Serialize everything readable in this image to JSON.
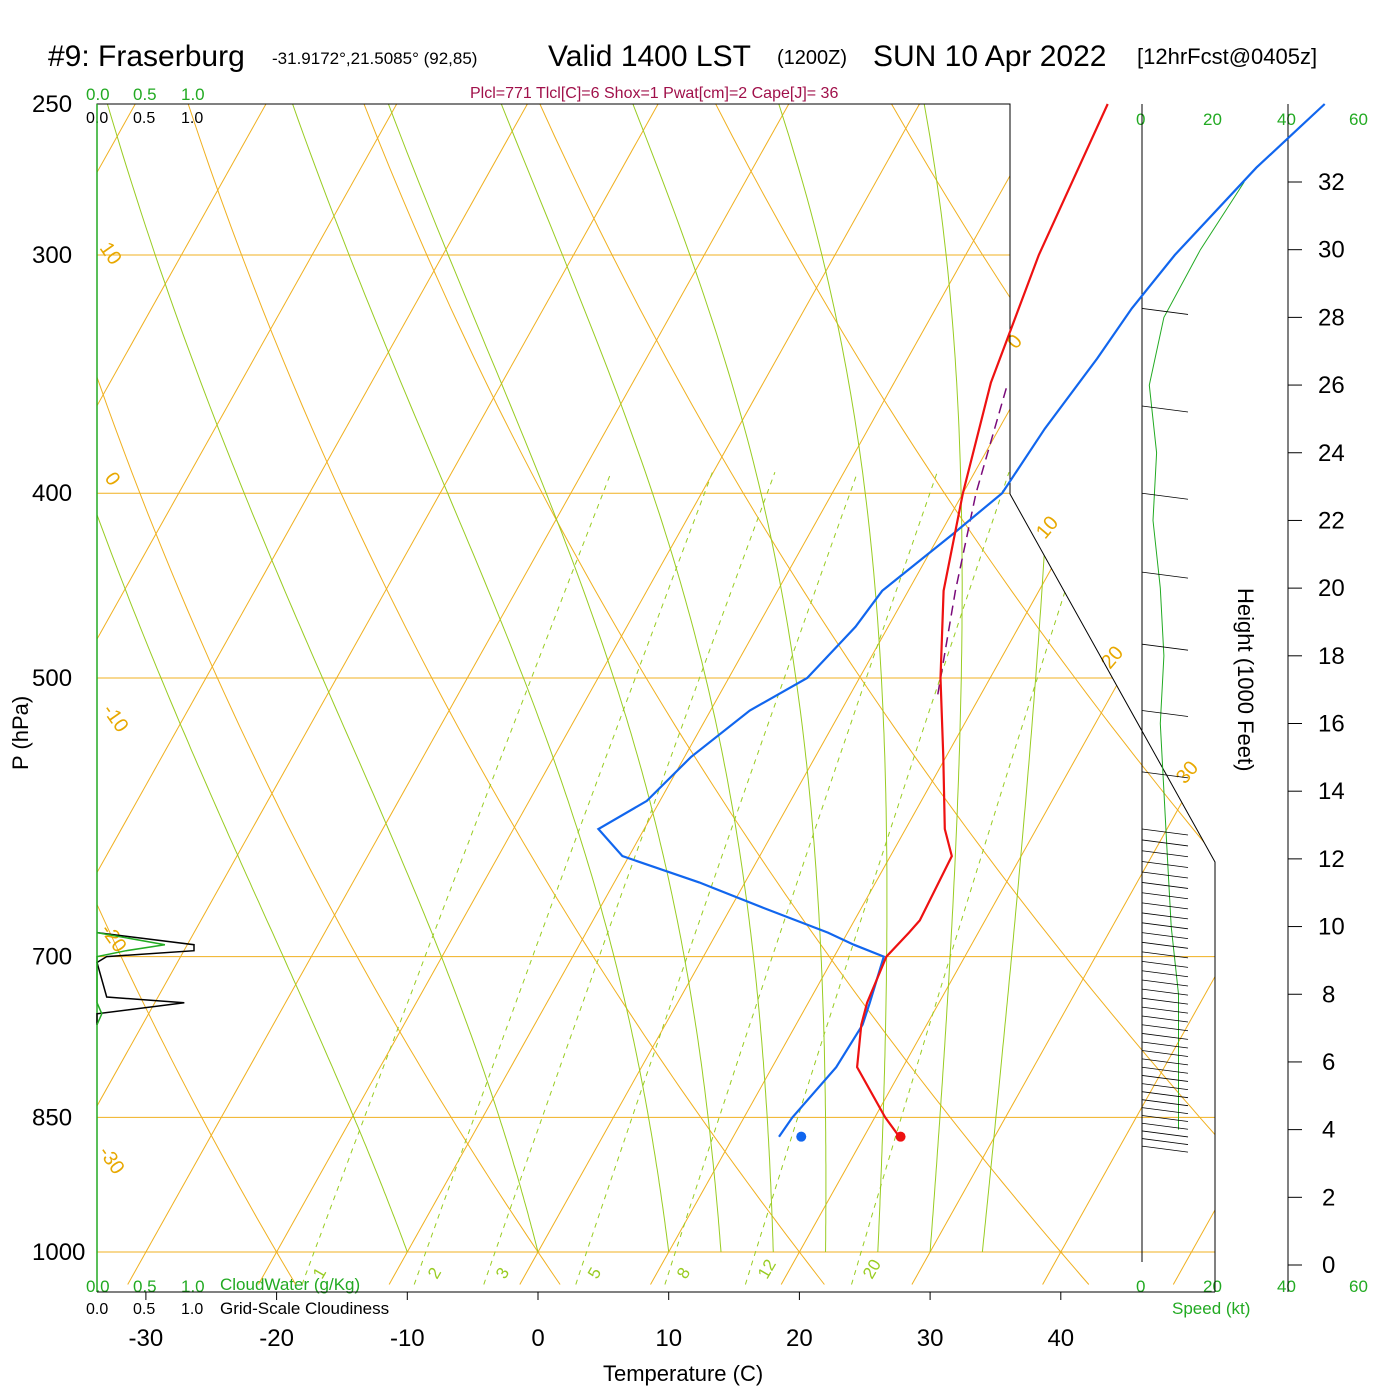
{
  "header": {
    "station": "#9: Fraserburg",
    "coords": "-31.9172°,21.5085° (92,85)",
    "valid_prefix": "Valid 1400 LST",
    "utc": "(1200Z)",
    "date": "SUN 10 Apr 2022",
    "forecast": "[12hrFcst@0405z]"
  },
  "params": "Plcl=771 Tlcl[C]=6 Shox=1 Pwat[cm]=2 Cape[J]= 36",
  "cloud_scale": {
    "top_green": [
      "0.0",
      "0.5",
      "1.0"
    ],
    "top_black": [
      "0.0",
      "0.5",
      "1.0"
    ],
    "bottom_green": [
      "0.0",
      "0.5",
      "1.0"
    ],
    "bottom_black": [
      "0.0",
      "0.5",
      "1.0"
    ],
    "cloudwater_label": "CloudWater (g/Kg)",
    "cloudiness_label": "Grid-Scale Cloudiness"
  },
  "wind_panel": {
    "top_ticks": [
      "0",
      "20",
      "40",
      "60"
    ],
    "bottom_ticks": [
      "0",
      "20",
      "40",
      "60"
    ],
    "speed_label": "Speed (kt)"
  },
  "colors": {
    "isotherm": "#f0b020",
    "mixing_ratio": "#99cc22",
    "temperature": "#ee1111",
    "dewpoint": "#1166ee",
    "parcel": "#7a0a7a",
    "wind_speed": "#22aa22"
  },
  "chart_data": {
    "type": "skew-t",
    "xlabel": "Temperature (C)",
    "ylabel": "P (hPa)",
    "y2label": "Height (1000 Feet)",
    "x_ticks": [
      -30,
      -20,
      -10,
      0,
      10,
      20,
      30,
      40
    ],
    "pressure_ticks": [
      250,
      300,
      400,
      500,
      700,
      850,
      1000
    ],
    "height_ticks": [
      0,
      2,
      4,
      6,
      8,
      10,
      12,
      14,
      16,
      18,
      20,
      22,
      24,
      26,
      28,
      30,
      32
    ],
    "xlim": [
      -34,
      36
    ],
    "plim": [
      1030,
      250
    ],
    "isotherm_labels": [
      {
        "t": 10,
        "text": "10"
      },
      {
        "t": 0,
        "text": "0"
      },
      {
        "t": -10,
        "text": "-10"
      },
      {
        "t": -20,
        "text": "-20"
      },
      {
        "t": -30,
        "text": "-30"
      },
      {
        "t": 0,
        "text": "0"
      },
      {
        "t": 10,
        "text": "10"
      },
      {
        "t": 20,
        "text": "20"
      },
      {
        "t": 30,
        "text": "30"
      }
    ],
    "mixing_ratio_labels": [
      "1",
      "2",
      "3",
      "5",
      "8",
      "12",
      "20"
    ],
    "temperature": {
      "name": "Temperature",
      "p": [
        870,
        850,
        800,
        760,
        740,
        700,
        680,
        670,
        620,
        600,
        550,
        500,
        450,
        400,
        350,
        300,
        250
      ],
      "t": [
        22.7,
        20.8,
        16.5,
        15.0,
        14.5,
        14.0,
        14.7,
        15.0,
        14.7,
        13.0,
        9.8,
        6.2,
        2.7,
        0.0,
        -2.6,
        -4.4,
        -5.6
      ]
    },
    "dewpoint": {
      "name": "Dewpoint",
      "p": [
        870,
        850,
        800,
        760,
        740,
        700,
        690,
        680,
        660,
        640,
        620,
        600,
        580,
        550,
        520,
        500,
        470,
        450,
        420,
        400,
        370,
        340,
        320,
        300,
        270,
        250
      ],
      "t": [
        13.5,
        13.7,
        14.9,
        15.1,
        14.7,
        13.8,
        11.0,
        8.5,
        2.5,
        -3.5,
        -10.5,
        -13.5,
        -11.0,
        -9.5,
        -7.0,
        -4.0,
        -2.5,
        -2.0,
        1.0,
        3.0,
        3.5,
        4.5,
        5.0,
        6.0,
        8.5,
        11.0
      ]
    },
    "surface_temperature": {
      "p": 870,
      "t": 22.8
    },
    "surface_dewpoint": {
      "p": 870,
      "t": 15.2
    },
    "parcel": {
      "name": "Parcel",
      "p": [
        510,
        450,
        400,
        350
      ],
      "t": [
        6.7,
        3.6,
        1.0,
        -1.3
      ]
    },
    "cloudwater": {
      "p": [
        680,
        690,
        695,
        700,
        705,
        710,
        740,
        750,
        760
      ],
      "v": [
        0.0,
        0.7,
        0.3,
        0.0,
        0.0,
        0.0,
        0.0,
        0.05,
        0.0
      ]
    },
    "cloudiness": {
      "p": [
        680,
        690,
        695,
        700,
        705,
        735,
        740,
        750,
        760
      ],
      "v": [
        0.0,
        1.0,
        1.0,
        0.1,
        0.0,
        0.1,
        0.9,
        0.0,
        0.0
      ]
    },
    "wind_profile_kft": [
      4,
      6,
      8,
      10,
      12,
      14,
      16,
      18,
      20,
      22,
      24,
      26,
      28,
      30,
      32
    ],
    "wind_speed_kt": [
      10,
      10,
      10,
      8,
      7,
      6,
      5,
      6,
      5,
      3,
      4,
      2,
      6,
      16,
      28
    ]
  }
}
